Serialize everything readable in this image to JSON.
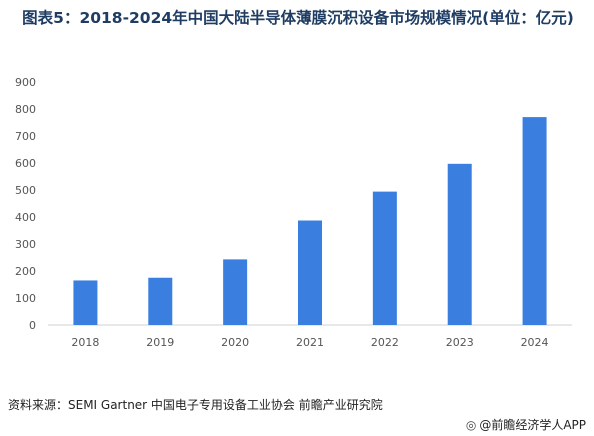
{
  "chart_data": {
    "type": "bar",
    "title": "图表5：2018-2024年中国大陆半导体薄膜沉积设备市场规模情况(单位：亿元)",
    "categories": [
      "2018",
      "2019",
      "2020",
      "2021",
      "2022",
      "2023",
      "2024"
    ],
    "values": [
      165,
      175,
      243,
      387,
      494,
      597,
      770
    ],
    "ylim": [
      0,
      900
    ],
    "yticks": [
      0,
      100,
      200,
      300,
      400,
      500,
      600,
      700,
      800,
      900
    ],
    "grid": false,
    "legend": "none",
    "bar_color": "#3a7ee0"
  },
  "source": "资料来源：SEMI Gartner 中国电子专用设备工业协会 前瞻产业研究院",
  "brand": {
    "icon": "wechat-icon",
    "text": "@前瞻经济学人APP"
  }
}
